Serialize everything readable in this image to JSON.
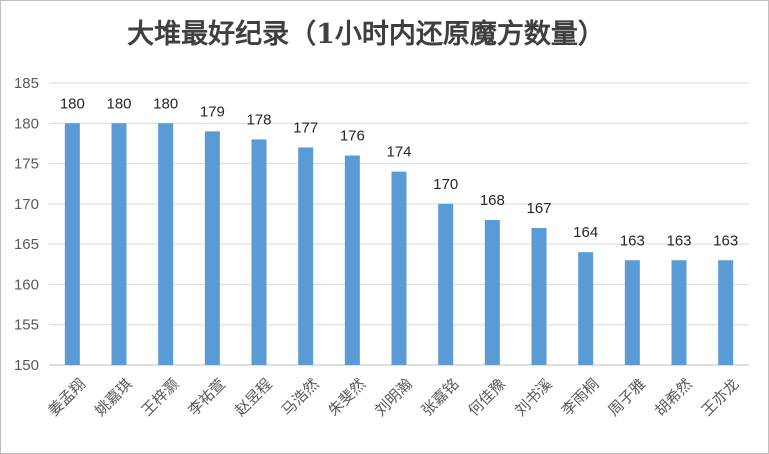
{
  "chart_data": {
    "type": "bar",
    "title": "大堆最好纪录（1小时内还原魔方数量）",
    "categories": [
      "姜孟翔",
      "姚嘉琪",
      "王梓灏",
      "李祐萱",
      "赵昱程",
      "马浩然",
      "朱斐然",
      "刘明瀚",
      "张嘉铭",
      "何佳豫",
      "刘书溪",
      "李雨桐",
      "周子雅",
      "胡希然",
      "王亦龙"
    ],
    "values": [
      180,
      180,
      180,
      179,
      178,
      177,
      176,
      174,
      170,
      168,
      167,
      164,
      163,
      163,
      163
    ],
    "ylim": [
      150,
      185
    ],
    "yticks": [
      150,
      155,
      160,
      165,
      170,
      175,
      180,
      185
    ],
    "xlabel": "",
    "ylabel": "",
    "grid": true,
    "legend": "none",
    "bar_color": "#5b9bd5",
    "grid_color": "#d9d9d9"
  }
}
